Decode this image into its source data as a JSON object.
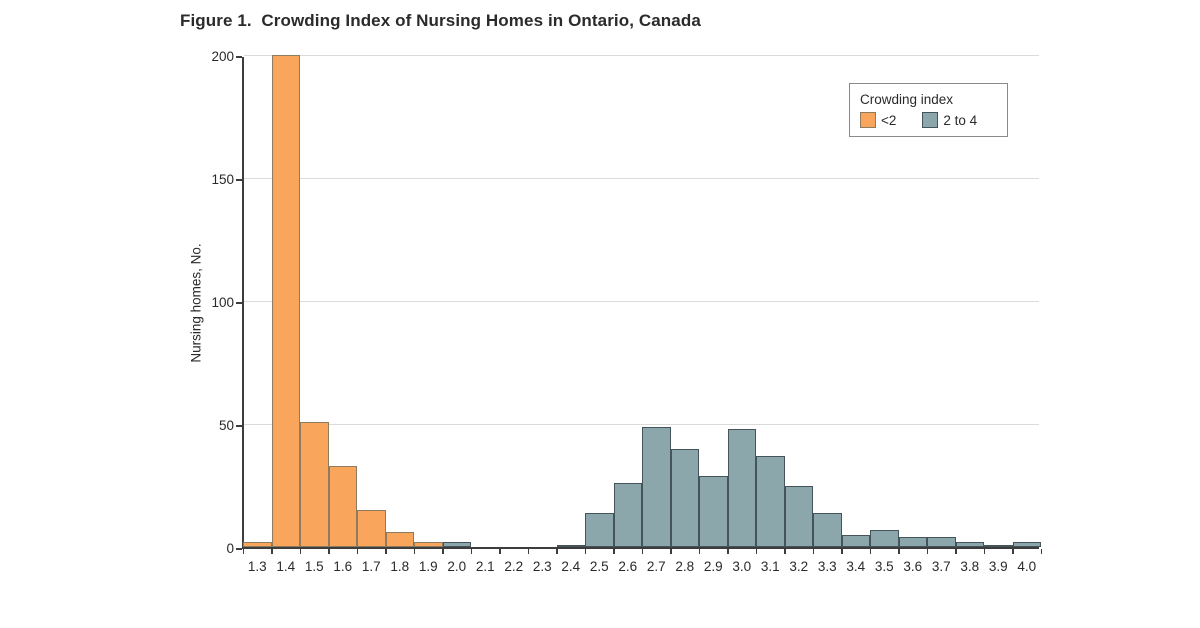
{
  "chart_data": {
    "type": "bar",
    "subtype": "histogram",
    "title": "Figure 1.  Crowding Index of Nursing Homes in Ontario, Canada",
    "xlabel": "Crowding index",
    "ylabel": "Nursing homes, No.",
    "ylim": [
      0,
      200
    ],
    "yticks": [
      0,
      50,
      100,
      150,
      200
    ],
    "grid": true,
    "categories": [
      "1.3",
      "1.4",
      "1.5",
      "1.6",
      "1.7",
      "1.8",
      "1.9",
      "2.0",
      "2.1",
      "2.2",
      "2.3",
      "2.4",
      "2.5",
      "2.6",
      "2.7",
      "2.8",
      "2.9",
      "3.0",
      "3.1",
      "3.2",
      "3.3",
      "3.4",
      "3.5",
      "3.6",
      "3.7",
      "3.8",
      "3.9",
      "4.0"
    ],
    "series": [
      {
        "name": "<2",
        "fill": "#F9A55C",
        "border": "#8E7C60",
        "values": [
          2,
          200,
          51,
          33,
          15,
          6,
          2,
          0,
          0,
          0,
          0,
          0,
          0,
          0,
          0,
          0,
          0,
          0,
          0,
          0,
          0,
          0,
          0,
          0,
          0,
          0,
          0,
          0
        ]
      },
      {
        "name": "2 to 4",
        "fill": "#8CA7AB",
        "border": "#45545A",
        "values": [
          0,
          0,
          0,
          0,
          0,
          0,
          0,
          2,
          0,
          0,
          0,
          1,
          14,
          26,
          49,
          40,
          29,
          48,
          37,
          25,
          14,
          5,
          7,
          4,
          4,
          2,
          1,
          2
        ]
      }
    ],
    "legend": {
      "title": "Crowding index",
      "position": "top-right",
      "entries": [
        {
          "label": "<2",
          "color": "#F9A55C",
          "border": "#8E7C60"
        },
        {
          "label": "2 to 4",
          "color": "#8CA7AB",
          "border": "#45545A"
        }
      ]
    },
    "colors": {
      "axis": "#3D3D3D",
      "grid": "#DBDBDB",
      "text": "#2A2A2A",
      "legend_border": "#8A8A8A",
      "background": "#FFFFFF"
    }
  }
}
